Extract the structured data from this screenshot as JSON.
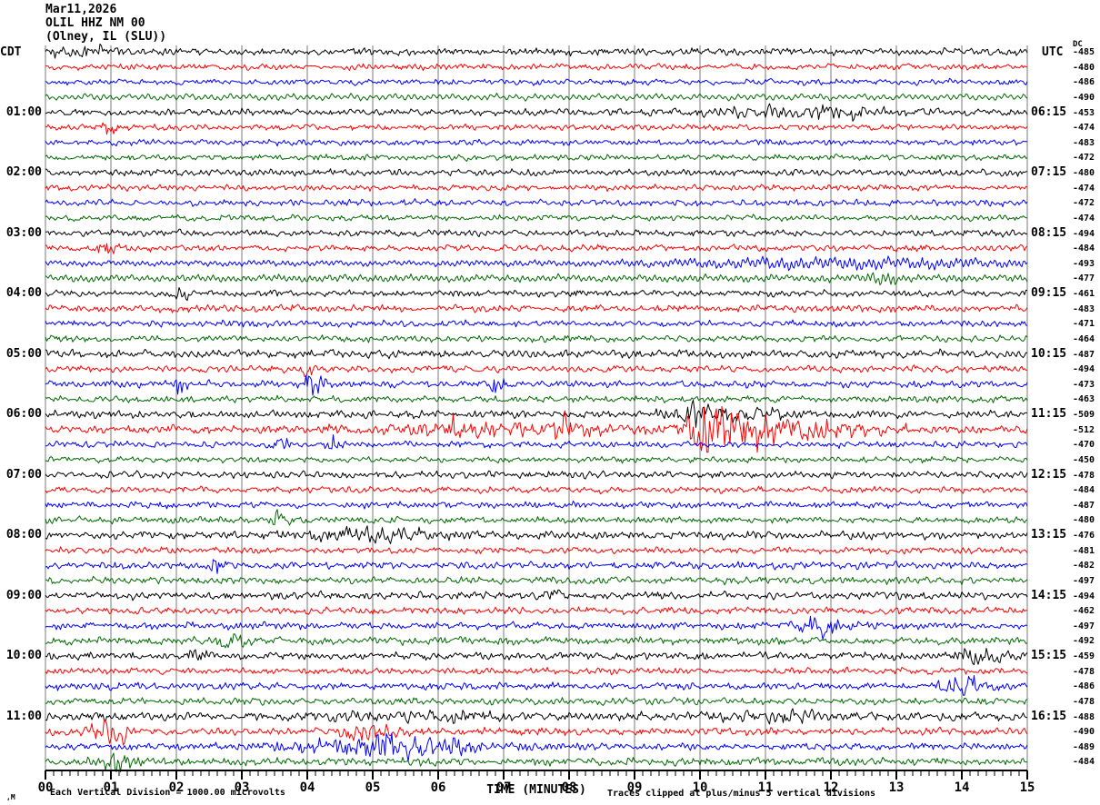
{
  "header": {
    "date": "Mar11,2026",
    "station": "OLIL HHZ NM 00",
    "location": "(Olney, IL (SLU))"
  },
  "left_axis_header": "CDT",
  "right_axis_header": "UTC",
  "dc_header": "DC",
  "footer": {
    "scale_note": "Each Vertical Division = 1000.00 microvolts",
    "clip_note": "Traces clipped at plus/minus 5 vertical divisions",
    "corner_mark": ",M",
    "time_axis_label": "TIME (MINUTES)"
  },
  "colors": {
    "black": "#000000",
    "red": "#ff0000",
    "blue": "#0000ff",
    "green": "#006a00",
    "grid": "#7a7a7a",
    "axis": "#000000"
  },
  "chart_data": {
    "type": "line",
    "kind": "seismogram-helicorder",
    "title": "Mar11,2026 OLIL HHZ NM 00 (Olney, IL (SLU))",
    "xlabel": "TIME (MINUTES)",
    "x_range_minutes": [
      0,
      15
    ],
    "x_major_tick_minutes": 1,
    "x_minor_ticks_per_major": 8,
    "x_tick_labels": [
      "00",
      "01",
      "02",
      "03",
      "04",
      "05",
      "06",
      "07",
      "08",
      "09",
      "10",
      "11",
      "12",
      "13",
      "14",
      "15"
    ],
    "rows_per_hour": 4,
    "trace_color_cycle": [
      "black",
      "red",
      "blue",
      "green"
    ],
    "cdt_hour_labels": [
      {
        "row": 4,
        "label": "01:00"
      },
      {
        "row": 8,
        "label": "02:00"
      },
      {
        "row": 12,
        "label": "03:00"
      },
      {
        "row": 16,
        "label": "04:00"
      },
      {
        "row": 20,
        "label": "05:00"
      },
      {
        "row": 24,
        "label": "06:00"
      },
      {
        "row": 28,
        "label": "07:00"
      },
      {
        "row": 32,
        "label": "08:00"
      },
      {
        "row": 36,
        "label": "09:00"
      },
      {
        "row": 40,
        "label": "10:00"
      },
      {
        "row": 44,
        "label": "11:00"
      }
    ],
    "utc_hour_labels": [
      {
        "row": 4,
        "label": "06:15"
      },
      {
        "row": 8,
        "label": "07:15"
      },
      {
        "row": 12,
        "label": "08:15"
      },
      {
        "row": 16,
        "label": "09:15"
      },
      {
        "row": 20,
        "label": "10:15"
      },
      {
        "row": 24,
        "label": "11:15"
      },
      {
        "row": 28,
        "label": "12:15"
      },
      {
        "row": 32,
        "label": "13:15"
      },
      {
        "row": 36,
        "label": "14:15"
      },
      {
        "row": 40,
        "label": "15:15"
      },
      {
        "row": 44,
        "label": "16:15"
      }
    ],
    "dc_offsets": [
      -485,
      -480,
      -486,
      -490,
      -453,
      -474,
      -483,
      -472,
      -480,
      -474,
      -472,
      -474,
      -494,
      -484,
      -493,
      -477,
      -461,
      -483,
      -471,
      -464,
      -487,
      -494,
      -473,
      -463,
      -509,
      -512,
      -470,
      -450,
      -478,
      -484,
      -487,
      -480,
      -476,
      -481,
      -482,
      -497,
      -494,
      -462,
      -497,
      -492,
      -459,
      -478,
      -486,
      -478,
      -488,
      -490,
      -489,
      -484
    ],
    "noise_base_amp": [
      2.6,
      2.2,
      2.2,
      2.8,
      2.6,
      2.2,
      2.2,
      2.2,
      2.4,
      2.2,
      2.4,
      2.2,
      2.4,
      2.4,
      2.6,
      3.2,
      2.4,
      2.6,
      2.4,
      2.4,
      3.0,
      2.6,
      2.6,
      2.4,
      2.8,
      3.0,
      2.4,
      2.2,
      2.6,
      2.4,
      2.4,
      2.4,
      2.8,
      2.4,
      2.6,
      2.6,
      2.8,
      2.6,
      2.6,
      2.8,
      2.8,
      2.4,
      2.6,
      2.6,
      3.0,
      2.8,
      2.6,
      2.8
    ],
    "smooth_rows": [
      3,
      14,
      15
    ],
    "events": [
      {
        "row": 0,
        "t": 0.7,
        "amp": 2.5,
        "sigma": 0.5
      },
      {
        "row": 4,
        "t": 11.6,
        "amp": 3.5,
        "sigma": 0.9
      },
      {
        "row": 5,
        "t": 1.0,
        "amp": 5,
        "sigma": 0.08
      },
      {
        "row": 13,
        "t": 0.95,
        "amp": 5,
        "sigma": 0.12
      },
      {
        "row": 14,
        "t": 12.3,
        "amp": 3.5,
        "sigma": 2.0
      },
      {
        "row": 15,
        "t": 12.8,
        "amp": 5,
        "sigma": 0.15
      },
      {
        "row": 16,
        "t": 2.1,
        "amp": 5,
        "sigma": 0.08
      },
      {
        "row": 21,
        "t": 4.0,
        "amp": 6,
        "sigma": 0.06
      },
      {
        "row": 22,
        "t": 2.05,
        "amp": 7,
        "sigma": 0.08
      },
      {
        "row": 22,
        "t": 4.1,
        "amp": 8,
        "sigma": 0.12
      },
      {
        "row": 22,
        "t": 6.9,
        "amp": 5,
        "sigma": 0.1
      },
      {
        "row": 24,
        "t": 9.9,
        "amp": 9,
        "sigma": 0.05
      },
      {
        "row": 24,
        "t": 10.4,
        "amp": 3.5,
        "sigma": 0.6
      },
      {
        "row": 25,
        "t": 6.3,
        "amp": 5,
        "sigma": 0.1
      },
      {
        "row": 25,
        "t": 7.9,
        "amp": 7,
        "sigma": 0.08
      },
      {
        "row": 25,
        "t": 7.0,
        "amp": 3,
        "sigma": 1.5
      },
      {
        "row": 25,
        "t": 10.15,
        "amp": 16,
        "sigma": 0.22
      },
      {
        "row": 25,
        "t": 10.9,
        "amp": 8,
        "sigma": 0.5
      },
      {
        "row": 25,
        "t": 11.9,
        "amp": 4.5,
        "sigma": 0.8
      },
      {
        "row": 26,
        "t": 3.6,
        "amp": 4,
        "sigma": 0.15
      },
      {
        "row": 26,
        "t": 4.4,
        "amp": 6,
        "sigma": 0.06
      },
      {
        "row": 31,
        "t": 3.6,
        "amp": 7,
        "sigma": 0.1
      },
      {
        "row": 32,
        "t": 4.9,
        "amp": 4.5,
        "sigma": 0.7
      },
      {
        "row": 34,
        "t": 2.6,
        "amp": 6,
        "sigma": 0.08
      },
      {
        "row": 36,
        "t": 7.8,
        "amp": 5,
        "sigma": 0.1
      },
      {
        "row": 38,
        "t": 11.9,
        "amp": 6,
        "sigma": 0.3
      },
      {
        "row": 39,
        "t": 2.9,
        "amp": 5,
        "sigma": 0.15
      },
      {
        "row": 40,
        "t": 2.3,
        "amp": 5,
        "sigma": 0.1
      },
      {
        "row": 40,
        "t": 14.3,
        "amp": 4,
        "sigma": 0.3
      },
      {
        "row": 42,
        "t": 14.05,
        "amp": 6,
        "sigma": 0.25
      },
      {
        "row": 44,
        "t": 5.7,
        "amp": 2,
        "sigma": 1.2
      },
      {
        "row": 44,
        "t": 11.3,
        "amp": 3,
        "sigma": 0.6
      },
      {
        "row": 45,
        "t": 1.0,
        "amp": 10,
        "sigma": 0.2
      },
      {
        "row": 45,
        "t": 4.9,
        "amp": 6,
        "sigma": 0.3
      },
      {
        "row": 46,
        "t": 5.2,
        "amp": 7,
        "sigma": 1.0
      },
      {
        "row": 47,
        "t": 1.1,
        "amp": 5,
        "sigma": 0.2
      }
    ],
    "scale_note": "Each Vertical Division = 1000.00 microvolts",
    "clip_note": "Traces clipped at plus/minus 5 vertical divisions"
  }
}
